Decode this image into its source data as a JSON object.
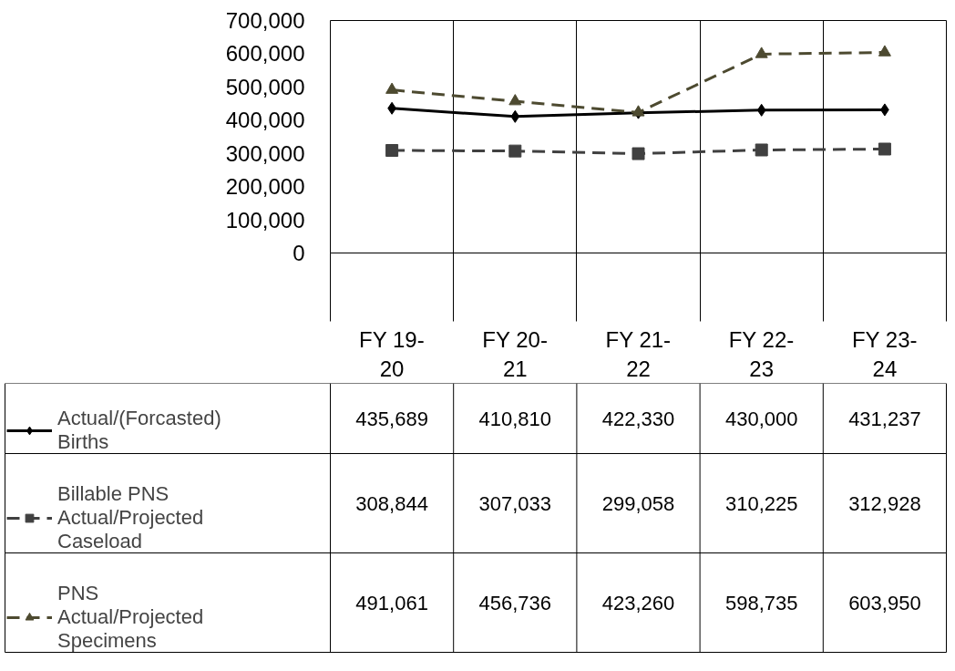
{
  "chart_data": {
    "type": "line",
    "categories": [
      "FY 19-20",
      "FY 20-21",
      "FY 21-22",
      "FY 22-23",
      "FY 23-24"
    ],
    "series": [
      {
        "name": "Actual/(Forcasted) Births",
        "color": "#000000",
        "marker": "diamond",
        "line_style": "solid",
        "values": [
          435689,
          410810,
          422330,
          430000,
          431237
        ],
        "value_labels": [
          "435,689",
          "410,810",
          "422,330",
          "430,000",
          "431,237"
        ]
      },
      {
        "name": "Billable PNS Actual/Projected Caseload",
        "color": "#404040",
        "marker": "square",
        "line_style": "dashed",
        "values": [
          308844,
          307033,
          299058,
          310225,
          312928
        ],
        "value_labels": [
          "308,844",
          "307,033",
          "299,058",
          "310,225",
          "312,928"
        ]
      },
      {
        "name": "PNS Actual/Projected Specimens",
        "color": "#4d4a30",
        "marker": "triangle",
        "line_style": "dashed",
        "values": [
          491061,
          456736,
          423260,
          598735,
          603950
        ],
        "value_labels": [
          "491,061",
          "456,736",
          "423,260",
          "598,735",
          "603,950"
        ]
      }
    ],
    "ylim": [
      0,
      700000
    ],
    "yticks": [
      {
        "value": 0,
        "label": "0"
      },
      {
        "value": 100000,
        "label": "100,000"
      },
      {
        "value": 200000,
        "label": "200,000"
      },
      {
        "value": 300000,
        "label": "300,000"
      },
      {
        "value": 400000,
        "label": "400,000"
      },
      {
        "value": 500000,
        "label": "500,000"
      },
      {
        "value": 600000,
        "label": "600,000"
      },
      {
        "value": 700000,
        "label": "700,000"
      }
    ],
    "grid": "x",
    "legend": "bottom"
  }
}
